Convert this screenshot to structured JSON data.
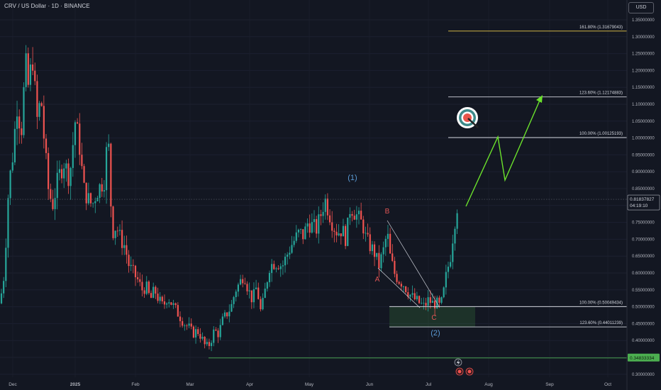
{
  "header": {
    "symbol_line": "CRV / US Dollar · 1D · BINANCE",
    "currency": "USD"
  },
  "colors": {
    "up": "#26a69a",
    "down": "#ef5350",
    "background": "#131722",
    "fib_gold": "#e6c84a",
    "target_green": "#6be22c",
    "support_green": "#4caf50",
    "wave_blue": "#5b9bd5",
    "wave_red": "#e05555"
  },
  "chart_data": {
    "type": "candlestick",
    "x_tick_labels": [
      "Dec",
      "2025",
      "Feb",
      "Mar",
      "Apr",
      "May",
      "Jun",
      "Jul",
      "Aug",
      "Sep",
      "Oct"
    ],
    "y_tick_labels": [
      "1.35000000",
      "1.30000000",
      "1.25000000",
      "1.20000000",
      "1.15000000",
      "1.10000000",
      "1.05000000",
      "1.00000000",
      "0.95000000",
      "0.90000000",
      "0.85000000",
      "0.80000000",
      "0.75000000",
      "0.70000000",
      "0.65000000",
      "0.60000000",
      "0.55000000",
      "0.50000000",
      "0.45000000",
      "0.40000000",
      "0.35000000",
      "0.30000000"
    ],
    "ylim": [
      0.28,
      1.38
    ],
    "last_price": "0.81837827",
    "countdown": "04:19:10",
    "support_price": "0.34833334",
    "fib_levels": [
      {
        "label": "161.80% (1.31679043)",
        "price": 1.31679043
      },
      {
        "label": "123.60% (1.12174883)",
        "price": 1.12174883
      },
      {
        "label": "100.00% (1.00125193)",
        "price": 1.00125193
      },
      {
        "label": "100.00% (0.50049434)",
        "price": 0.50049434
      },
      {
        "label": "123.60% (0.44011239)",
        "price": 0.44011239
      }
    ],
    "wave_labels": [
      "(1)",
      "(2)",
      "A",
      "B",
      "C"
    ],
    "close_anchors": [
      [
        0,
        0.51
      ],
      [
        6,
        0.6
      ],
      [
        12,
        0.85
      ],
      [
        18,
        0.95
      ],
      [
        24,
        1.1
      ],
      [
        30,
        1.02
      ],
      [
        36,
        1.22
      ],
      [
        40,
        1.15
      ],
      [
        46,
        1.24
      ],
      [
        52,
        1.05
      ],
      [
        58,
        1.12
      ],
      [
        62,
        1.0
      ],
      [
        68,
        0.85
      ],
      [
        74,
        0.8
      ],
      [
        82,
        0.88
      ],
      [
        90,
        0.93
      ],
      [
        98,
        0.88
      ],
      [
        106,
        1.05
      ],
      [
        112,
        0.98
      ],
      [
        118,
        0.85
      ],
      [
        124,
        0.82
      ],
      [
        130,
        0.8
      ],
      [
        136,
        0.84
      ],
      [
        142,
        0.86
      ],
      [
        148,
        0.88
      ],
      [
        152,
        1.03
      ],
      [
        158,
        0.72
      ],
      [
        164,
        0.74
      ],
      [
        170,
        0.7
      ],
      [
        176,
        0.68
      ],
      [
        182,
        0.62
      ],
      [
        188,
        0.6
      ],
      [
        194,
        0.58
      ],
      [
        200,
        0.55
      ],
      [
        206,
        0.56
      ],
      [
        212,
        0.52
      ],
      [
        218,
        0.55
      ],
      [
        224,
        0.52
      ],
      [
        230,
        0.5
      ],
      [
        236,
        0.53
      ],
      [
        242,
        0.51
      ],
      [
        248,
        0.49
      ],
      [
        254,
        0.47
      ],
      [
        260,
        0.45
      ],
      [
        266,
        0.44
      ],
      [
        272,
        0.42
      ],
      [
        278,
        0.43
      ],
      [
        284,
        0.41
      ],
      [
        290,
        0.38
      ],
      [
        296,
        0.39
      ],
      [
        302,
        0.43
      ],
      [
        308,
        0.42
      ],
      [
        314,
        0.46
      ],
      [
        320,
        0.48
      ],
      [
        326,
        0.5
      ],
      [
        332,
        0.55
      ],
      [
        338,
        0.57
      ],
      [
        344,
        0.6
      ],
      [
        350,
        0.55
      ],
      [
        356,
        0.52
      ],
      [
        362,
        0.56
      ],
      [
        368,
        0.48
      ],
      [
        374,
        0.55
      ],
      [
        380,
        0.62
      ],
      [
        386,
        0.63
      ],
      [
        392,
        0.63
      ],
      [
        398,
        0.62
      ],
      [
        404,
        0.65
      ],
      [
        410,
        0.68
      ],
      [
        416,
        0.7
      ],
      [
        422,
        0.72
      ],
      [
        428,
        0.71
      ],
      [
        434,
        0.75
      ],
      [
        440,
        0.74
      ],
      [
        446,
        0.73
      ],
      [
        452,
        0.77
      ],
      [
        458,
        0.82
      ],
      [
        464,
        0.78
      ],
      [
        470,
        0.74
      ],
      [
        476,
        0.72
      ],
      [
        482,
        0.73
      ],
      [
        488,
        0.7
      ],
      [
        494,
        0.8
      ],
      [
        500,
        0.78
      ],
      [
        506,
        0.76
      ],
      [
        512,
        0.74
      ],
      [
        516,
        0.7
      ],
      [
        522,
        0.68
      ],
      [
        528,
        0.66
      ],
      [
        534,
        0.62
      ],
      [
        540,
        0.66
      ],
      [
        546,
        0.72
      ],
      [
        550,
        0.65
      ],
      [
        556,
        0.6
      ],
      [
        562,
        0.58
      ],
      [
        568,
        0.57
      ],
      [
        574,
        0.55
      ],
      [
        580,
        0.53
      ],
      [
        586,
        0.52
      ],
      [
        592,
        0.51
      ],
      [
        598,
        0.5
      ],
      [
        604,
        0.52
      ],
      [
        610,
        0.51
      ],
      [
        616,
        0.51
      ],
      [
        620,
        0.5
      ],
      [
        624,
        0.52
      ],
      [
        628,
        0.58
      ],
      [
        632,
        0.62
      ],
      [
        636,
        0.66
      ],
      [
        640,
        0.74
      ],
      [
        644,
        0.79
      ],
      [
        646,
        0.82
      ]
    ]
  }
}
